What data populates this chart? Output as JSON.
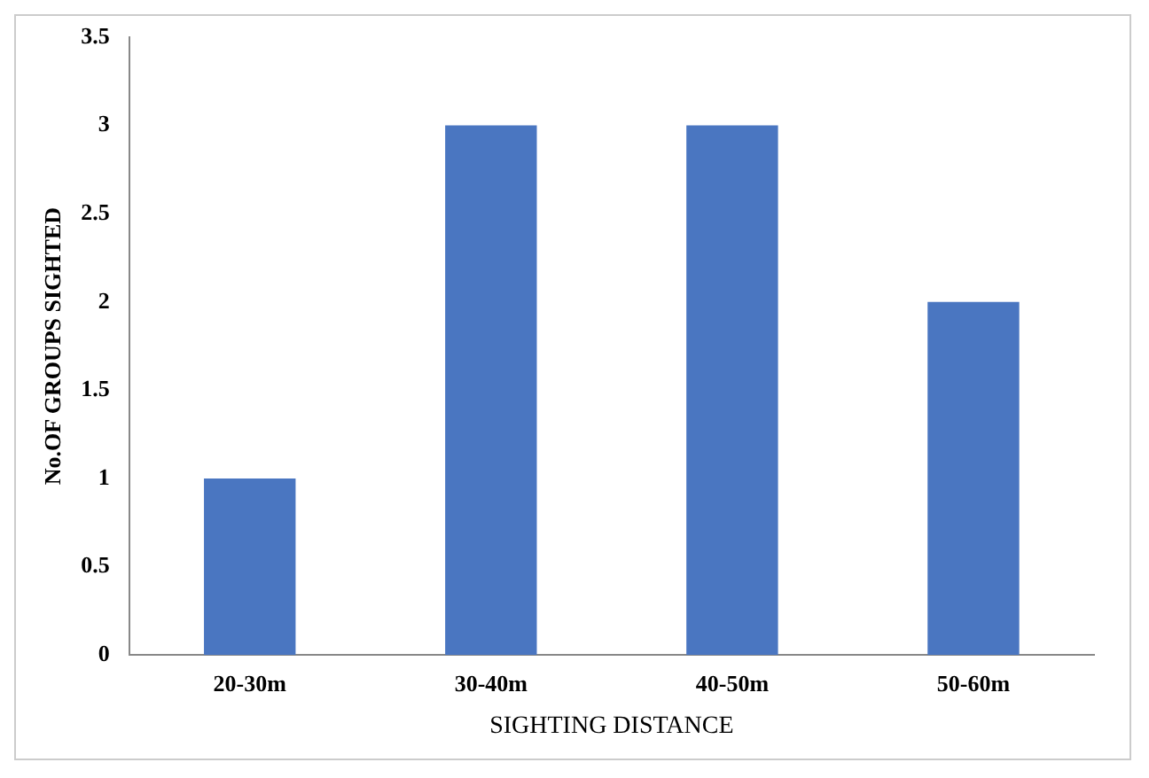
{
  "chart_data": {
    "type": "bar",
    "categories": [
      "20-30m",
      "30-40m",
      "40-50m",
      "50-60m"
    ],
    "values": [
      1,
      3,
      3,
      2
    ],
    "color": "#4a76c1",
    "xlabel": "SIGHTING DISTANCE",
    "ylabel": "No.OF GROUPS SIGHTED",
    "ylim": [
      0,
      3.5
    ],
    "yticks": [
      0,
      0.5,
      1,
      1.5,
      2,
      2.5,
      3,
      3.5
    ],
    "grid": false,
    "legend": false
  }
}
